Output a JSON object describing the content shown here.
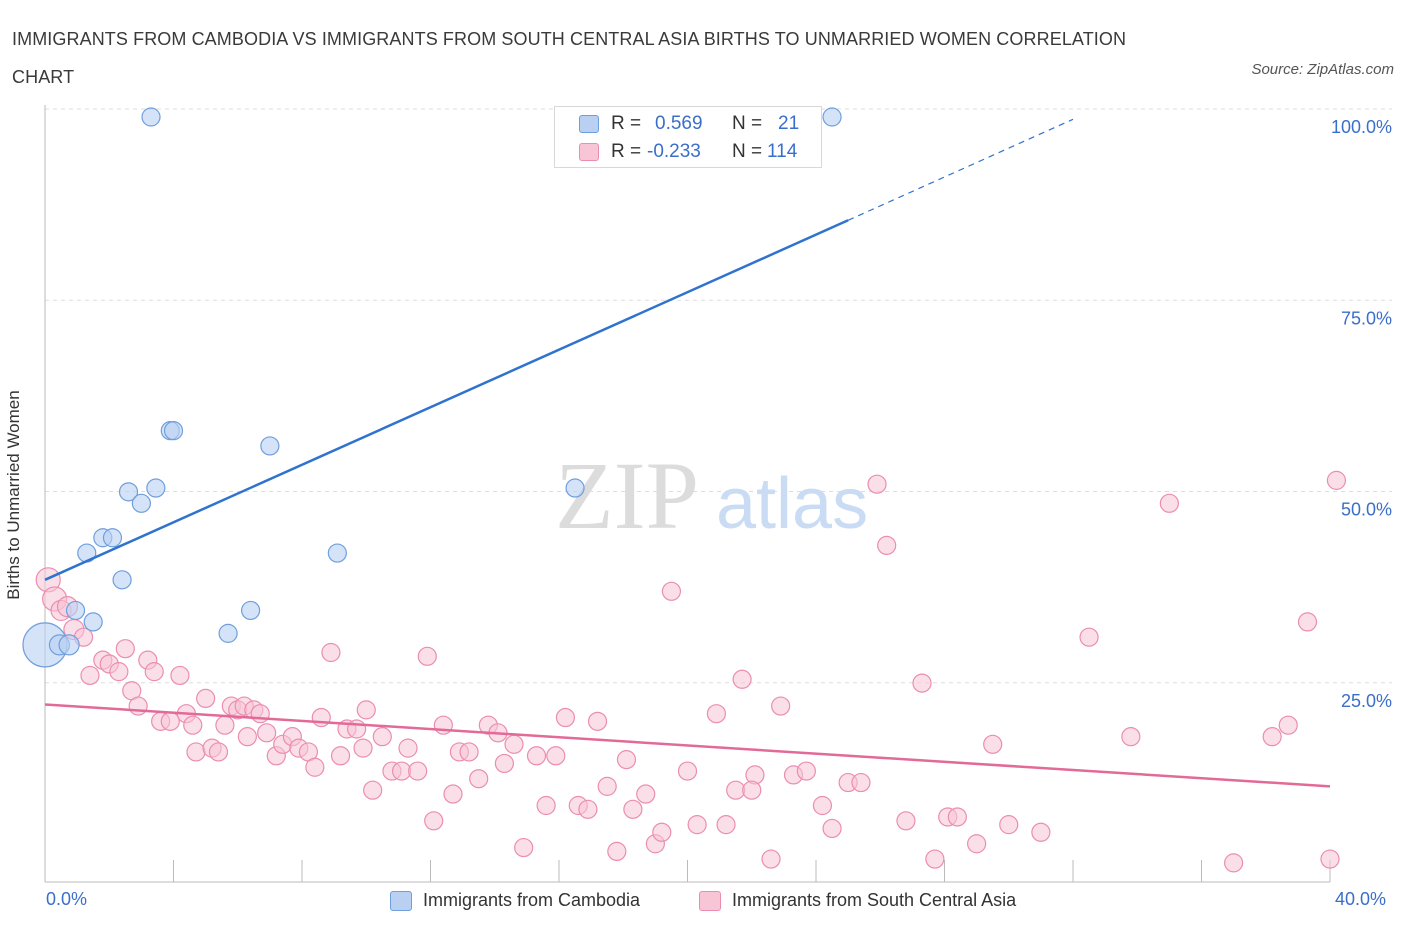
{
  "header": {
    "title": "IMMIGRANTS FROM CAMBODIA VS IMMIGRANTS FROM SOUTH CENTRAL ASIA BIRTHS TO UNMARRIED WOMEN CORRELATION CHART",
    "source": "Source: ZipAtlas.com"
  },
  "legend": {
    "row1": {
      "r_label": "R =",
      "r_value": "0.569",
      "n_label": "N =",
      "n_value": "21"
    },
    "row2": {
      "r_label": "R =",
      "r_value": "-0.233",
      "n_label": "N =",
      "n_value": "114"
    }
  },
  "bottom_legend": {
    "series1": "Immigrants from Cambodia",
    "series2": "Immigrants from South Central Asia"
  },
  "axis": {
    "ylabel": "Births to Unmarried Women",
    "x_min_label": "0.0%",
    "x_max_label": "40.0%"
  },
  "colors": {
    "blue_fill": "#b9d0f3",
    "blue_stroke": "#6f9fdc",
    "blue_line": "#2f73cf",
    "pink_fill": "#f7c5d5",
    "pink_stroke": "#eb8db0",
    "pink_line": "#e26a97",
    "tick_label": "#3a6fc9",
    "grid": "#dddddd"
  },
  "chart_data": {
    "type": "scatter",
    "xlim": [
      0,
      40
    ],
    "ylim": [
      0,
      100
    ],
    "ytick_labels": [
      "25.0%",
      "50.0%",
      "75.0%",
      "100.0%"
    ],
    "ytick_values": [
      25,
      50,
      75,
      100
    ],
    "grid": true,
    "watermark": "ZIPatlas",
    "series": [
      {
        "name": "Immigrants from Cambodia",
        "R": 0.569,
        "N": 21,
        "trend": {
          "x0": 0,
          "y0": 39.5,
          "x1": 25,
          "y1": 86.5,
          "dashed_to_x": 32,
          "dashed_to_y": 99.7
        },
        "points": [
          [
            0.0,
            31,
            22
          ],
          [
            0.45,
            31,
            10
          ],
          [
            0.75,
            31,
            10
          ],
          [
            0.95,
            35.5,
            9
          ],
          [
            1.5,
            34,
            9
          ],
          [
            1.3,
            43,
            9
          ],
          [
            1.8,
            45,
            9
          ],
          [
            2.1,
            45,
            9
          ],
          [
            2.4,
            39.5,
            9
          ],
          [
            2.6,
            51,
            9
          ],
          [
            3.0,
            49.5,
            9
          ],
          [
            3.45,
            51.5,
            9
          ],
          [
            3.9,
            59,
            9
          ],
          [
            4.0,
            59,
            9
          ],
          [
            5.7,
            32.5,
            9
          ],
          [
            6.4,
            35.5,
            9
          ],
          [
            7.0,
            57,
            9
          ],
          [
            9.1,
            43,
            9
          ],
          [
            16.5,
            51.5,
            9
          ],
          [
            3.3,
            100,
            9
          ],
          [
            24.5,
            100,
            9
          ]
        ]
      },
      {
        "name": "Immigrants from South Central Asia",
        "R": -0.233,
        "N": 114,
        "trend": {
          "x0": 0,
          "y0": 23.2,
          "x1": 40,
          "y1": 12.5
        },
        "points": [
          [
            0.1,
            39.5,
            12
          ],
          [
            0.3,
            37,
            12
          ],
          [
            0.5,
            35.5,
            10
          ],
          [
            0.7,
            36,
            10
          ],
          [
            0.9,
            33,
            10
          ],
          [
            1.2,
            32,
            9
          ],
          [
            1.4,
            27,
            9
          ],
          [
            1.8,
            29,
            9
          ],
          [
            2.0,
            28.5,
            9
          ],
          [
            2.3,
            27.5,
            9
          ],
          [
            2.5,
            30.5,
            9
          ],
          [
            2.7,
            25,
            9
          ],
          [
            2.9,
            23,
            9
          ],
          [
            3.2,
            29,
            9
          ],
          [
            3.4,
            27.5,
            9
          ],
          [
            3.6,
            21,
            9
          ],
          [
            3.9,
            21,
            9
          ],
          [
            4.2,
            27,
            9
          ],
          [
            4.4,
            22,
            9
          ],
          [
            4.6,
            20.5,
            9
          ],
          [
            4.7,
            17,
            9
          ],
          [
            5.0,
            24,
            9
          ],
          [
            5.2,
            17.5,
            9
          ],
          [
            5.4,
            17,
            9
          ],
          [
            5.6,
            20.5,
            9
          ],
          [
            5.8,
            23,
            9
          ],
          [
            6.0,
            22.5,
            9
          ],
          [
            6.2,
            23,
            9
          ],
          [
            6.3,
            19,
            9
          ],
          [
            6.5,
            22.5,
            9
          ],
          [
            6.7,
            22,
            9
          ],
          [
            6.9,
            19.5,
            9
          ],
          [
            7.2,
            16.5,
            9
          ],
          [
            7.4,
            18,
            9
          ],
          [
            7.7,
            19,
            9
          ],
          [
            7.9,
            17.5,
            9
          ],
          [
            8.2,
            17,
            9
          ],
          [
            8.4,
            15,
            9
          ],
          [
            8.6,
            21.5,
            9
          ],
          [
            8.9,
            30,
            9
          ],
          [
            9.2,
            16.5,
            9
          ],
          [
            9.4,
            20,
            9
          ],
          [
            9.7,
            20,
            9
          ],
          [
            9.9,
            17.5,
            9
          ],
          [
            10.2,
            12,
            9
          ],
          [
            10.5,
            19,
            9
          ],
          [
            10.8,
            14.5,
            9
          ],
          [
            11.1,
            14.5,
            9
          ],
          [
            11.3,
            17.5,
            9
          ],
          [
            11.6,
            14.5,
            9
          ],
          [
            11.9,
            29.5,
            9
          ],
          [
            12.1,
            8,
            9
          ],
          [
            12.4,
            20.5,
            9
          ],
          [
            12.7,
            11.5,
            9
          ],
          [
            12.9,
            17,
            9
          ],
          [
            13.2,
            17,
            9
          ],
          [
            13.5,
            13.5,
            9
          ],
          [
            13.8,
            20.5,
            9
          ],
          [
            14.1,
            19.5,
            9
          ],
          [
            14.3,
            15.5,
            9
          ],
          [
            14.6,
            18,
            9
          ],
          [
            14.9,
            4.5,
            9
          ],
          [
            15.3,
            16.5,
            9
          ],
          [
            15.6,
            10,
            9
          ],
          [
            15.9,
            16.5,
            9
          ],
          [
            16.2,
            21.5,
            9
          ],
          [
            16.6,
            10,
            9
          ],
          [
            16.9,
            9.5,
            9
          ],
          [
            17.2,
            21,
            9
          ],
          [
            17.5,
            12.5,
            9
          ],
          [
            17.8,
            4,
            9
          ],
          [
            18.1,
            16,
            9
          ],
          [
            18.3,
            9.5,
            9
          ],
          [
            18.7,
            11.5,
            9
          ],
          [
            19.0,
            5,
            9
          ],
          [
            19.2,
            6.5,
            9
          ],
          [
            19.5,
            38,
            9
          ],
          [
            20.0,
            14.5,
            9
          ],
          [
            20.3,
            7.5,
            9
          ],
          [
            20.9,
            22,
            9
          ],
          [
            21.2,
            7.5,
            9
          ],
          [
            21.5,
            12,
            9
          ],
          [
            21.7,
            26.5,
            9
          ],
          [
            22.6,
            3,
            9
          ],
          [
            22.1,
            14,
            9
          ],
          [
            22.9,
            23,
            9
          ],
          [
            23.3,
            14,
            9
          ],
          [
            23.7,
            14.5,
            9
          ],
          [
            24.2,
            10,
            9
          ],
          [
            24.5,
            7,
            9
          ],
          [
            25.0,
            13,
            9
          ],
          [
            25.4,
            13,
            9
          ],
          [
            25.9,
            52,
            9
          ],
          [
            26.2,
            44,
            9
          ],
          [
            26.8,
            8,
            9
          ],
          [
            27.3,
            26,
            9
          ],
          [
            27.7,
            3,
            9
          ],
          [
            28.1,
            8.5,
            9
          ],
          [
            28.4,
            8.5,
            9
          ],
          [
            29.0,
            5,
            9
          ],
          [
            29.5,
            18,
            9
          ],
          [
            30.0,
            7.5,
            9
          ],
          [
            31.0,
            6.5,
            9
          ],
          [
            32.5,
            32,
            9
          ],
          [
            33.8,
            19,
            9
          ],
          [
            35.0,
            49.5,
            9
          ],
          [
            37.0,
            2.5,
            9
          ],
          [
            38.2,
            19,
            9
          ],
          [
            38.7,
            20.5,
            9
          ],
          [
            39.3,
            34,
            9
          ],
          [
            40.0,
            3,
            9
          ],
          [
            40.2,
            52.5,
            9
          ],
          [
            22.0,
            12,
            9
          ],
          [
            10.0,
            22.5,
            9
          ]
        ]
      }
    ]
  }
}
